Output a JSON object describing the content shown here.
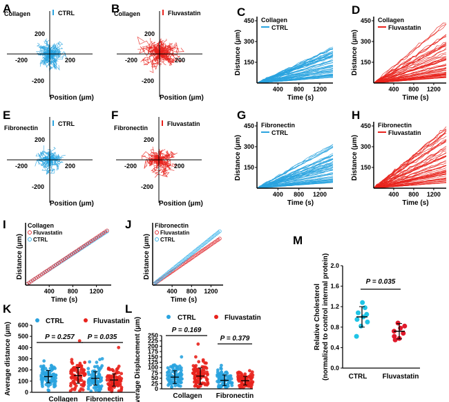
{
  "colors": {
    "ctrl": "#29a3df",
    "fluva": "#e8221c",
    "ctrl_open": "#3db4ea",
    "fluva_open": "#e0343a",
    "m_ctrl": "#1fc4e6",
    "m_fluva": "#e0192a"
  },
  "chart_data": [
    {
      "panel": "A",
      "type": "scatter",
      "title": "Collagen",
      "legend": [
        "CTRL"
      ],
      "xlabel": "Position (μm)",
      "xticks": [
        "-200",
        "200"
      ],
      "yticks": [
        "200",
        "-200"
      ],
      "xlim": [
        -290,
        290
      ],
      "ylim": [
        -290,
        290
      ],
      "series": [
        {
          "name": "CTRL",
          "tracks": 60,
          "max_spread": 110
        }
      ]
    },
    {
      "panel": "B",
      "type": "scatter",
      "title": "Collagen",
      "legend": [
        "Fluvastatin"
      ],
      "xlabel": "Position (μm)",
      "xticks": [
        "-200",
        "200"
      ],
      "yticks": [
        "200",
        "-200"
      ],
      "xlim": [
        -290,
        290
      ],
      "ylim": [
        -290,
        290
      ],
      "series": [
        {
          "name": "Fluvastatin",
          "tracks": 60,
          "max_spread": 150
        }
      ]
    },
    {
      "panel": "C",
      "type": "line",
      "title": "Collagen",
      "legend": [
        "CTRL"
      ],
      "xlabel": "Time (s)",
      "ylabel": "Distance (μm)",
      "xticks": [
        400,
        800,
        1200
      ],
      "yticks": [
        150,
        300,
        450
      ],
      "xlim": [
        0,
        1450
      ],
      "ylim": [
        0,
        480
      ],
      "series": [
        {
          "name": "CTRL",
          "tracks": 60,
          "final_min": 40,
          "final_max": 260
        }
      ]
    },
    {
      "panel": "D",
      "type": "line",
      "title": "Collagen",
      "legend": [
        "Fluvastatin"
      ],
      "xlabel": "Time (s)",
      "ylabel": "Distance (μm)",
      "xticks": [
        400,
        800,
        1200
      ],
      "yticks": [
        150,
        300,
        450
      ],
      "xlim": [
        0,
        1450
      ],
      "ylim": [
        0,
        480
      ],
      "series": [
        {
          "name": "Fluvastatin",
          "tracks": 60,
          "final_min": 40,
          "final_max": 460
        }
      ]
    },
    {
      "panel": "E",
      "type": "scatter",
      "title": "Fibronectin",
      "legend": [
        "CTRL"
      ],
      "xlabel": "Position (μm)",
      "xticks": [
        "-200",
        "200"
      ],
      "yticks": [
        "200",
        "-200"
      ],
      "xlim": [
        -290,
        290
      ],
      "ylim": [
        -290,
        290
      ],
      "series": [
        {
          "name": "CTRL",
          "tracks": 50,
          "max_spread": 95
        }
      ]
    },
    {
      "panel": "F",
      "type": "scatter",
      "title": "Fibronectin",
      "legend": [
        "Fluvastatin"
      ],
      "xlabel": "Position (μm)",
      "xticks": [
        "-200",
        "200"
      ],
      "yticks": [
        "200",
        "-200"
      ],
      "xlim": [
        -290,
        290
      ],
      "ylim": [
        -290,
        290
      ],
      "series": [
        {
          "name": "Fluvastatin",
          "tracks": 50,
          "max_spread": 120
        }
      ]
    },
    {
      "panel": "G",
      "type": "line",
      "title": "Fibronectin",
      "legend": [
        "CTRL"
      ],
      "xlabel": "Time (s)",
      "ylabel": "Distance (μm)",
      "xticks": [
        400,
        800,
        1200
      ],
      "yticks": [
        150,
        300,
        450
      ],
      "xlim": [
        0,
        1450
      ],
      "ylim": [
        0,
        480
      ],
      "series": [
        {
          "name": "CTRL",
          "tracks": 60,
          "final_min": 40,
          "final_max": 320
        }
      ]
    },
    {
      "panel": "H",
      "type": "line",
      "title": "Fibronectin",
      "legend": [
        "Fluvastatin"
      ],
      "xlabel": "Time (s)",
      "ylabel": "Distance (μm)",
      "xticks": [
        400,
        800,
        1200
      ],
      "yticks": [
        150,
        300,
        450
      ],
      "xlim": [
        0,
        1450
      ],
      "ylim": [
        0,
        480
      ],
      "series": [
        {
          "name": "Fluvastatin",
          "tracks": 60,
          "final_min": 40,
          "final_max": 440
        }
      ]
    },
    {
      "panel": "I",
      "type": "line",
      "title": "Collagen",
      "legend": [
        "Fluvastatin",
        "CTRL"
      ],
      "xlabel": "Time (s)",
      "ylabel": "Distance (μm)",
      "xticks": [
        400,
        800,
        1200
      ],
      "xlim": [
        0,
        1450
      ],
      "ylim": [
        0,
        170
      ],
      "series": [
        {
          "name": "Fluvastatin",
          "slope": 0.108
        },
        {
          "name": "CTRL",
          "slope": 0.106
        }
      ]
    },
    {
      "panel": "J",
      "type": "line",
      "title": "Fibronectin",
      "legend": [
        "Fluvastatin",
        "CTRL"
      ],
      "xlabel": "Time (s)",
      "ylabel": "Distance (μm)",
      "xticks": [
        400,
        800,
        1200
      ],
      "xlim": [
        0,
        1450
      ],
      "ylim": [
        0,
        150
      ],
      "series": [
        {
          "name": "Fluvastatin",
          "slope": 0.081
        },
        {
          "name": "CTRL",
          "slope": 0.094
        }
      ]
    },
    {
      "panel": "K",
      "type": "scatter",
      "legend": [
        "CTRL",
        "Fluvastatin"
      ],
      "ylabel": "Average distance (μm)",
      "categories": [
        "Collagen",
        "Fibronectin"
      ],
      "yticks": [
        0,
        100,
        200,
        300,
        400,
        500,
        600
      ],
      "ylim": [
        0,
        600
      ],
      "pvalues": [
        "P = 0.257",
        "P = 0.035"
      ],
      "series": [
        {
          "name": "CTRL",
          "group": "Collagen",
          "mean": 140,
          "sd": 55,
          "n": 80,
          "max": 280
        },
        {
          "name": "Fluvastatin",
          "group": "Collagen",
          "mean": 150,
          "sd": 70,
          "n": 80,
          "max": 460
        },
        {
          "name": "CTRL",
          "group": "Fibronectin",
          "mean": 125,
          "sd": 60,
          "n": 80,
          "max": 300
        },
        {
          "name": "Fluvastatin",
          "group": "Fibronectin",
          "mean": 110,
          "sd": 55,
          "n": 80,
          "max": 400
        }
      ]
    },
    {
      "panel": "L",
      "type": "scatter",
      "legend": [
        "CTRL",
        "Fluvastatin"
      ],
      "ylabel": "Average Displacement (μm)",
      "categories": [
        "Collagen",
        "Fibronectin"
      ],
      "yticks": [
        0,
        25,
        50,
        75,
        100,
        125,
        150,
        175,
        200,
        225,
        250
      ],
      "ylim": [
        0,
        250
      ],
      "pvalues": [
        "P = 0.169",
        "P = 0.379"
      ],
      "series": [
        {
          "name": "CTRL",
          "group": "Collagen",
          "mean": 55,
          "sd": 30,
          "n": 80,
          "max": 150
        },
        {
          "name": "Fluvastatin",
          "group": "Collagen",
          "mean": 60,
          "sd": 38,
          "n": 80,
          "max": 210
        },
        {
          "name": "CTRL",
          "group": "Fibronectin",
          "mean": 40,
          "sd": 25,
          "n": 80,
          "max": 110
        },
        {
          "name": "Fluvastatin",
          "group": "Fibronectin",
          "mean": 38,
          "sd": 20,
          "n": 80,
          "max": 85
        }
      ]
    },
    {
      "panel": "M",
      "type": "scatter",
      "ylabel": "Relative Cholesterol (normalized to control internal protein)",
      "categories": [
        "CTRL",
        "Fluvastatin"
      ],
      "yticks": [
        "0.0",
        "0.4",
        "0.8",
        "1.2",
        "1.6",
        "2.0"
      ],
      "ylim": [
        0,
        2.0
      ],
      "pvalues": [
        "P = 0.035"
      ],
      "series": [
        {
          "name": "CTRL",
          "mean": 1.0,
          "sd": 0.2,
          "values": [
            0.62,
            0.82,
            0.9,
            0.95,
            1.0,
            1.05,
            1.08,
            1.28,
            1.18
          ]
        },
        {
          "name": "Fluvastatin",
          "mean": 0.72,
          "sd": 0.15,
          "values": [
            0.55,
            0.58,
            0.68,
            0.72,
            0.78,
            0.82,
            0.62,
            0.88
          ]
        }
      ]
    }
  ]
}
